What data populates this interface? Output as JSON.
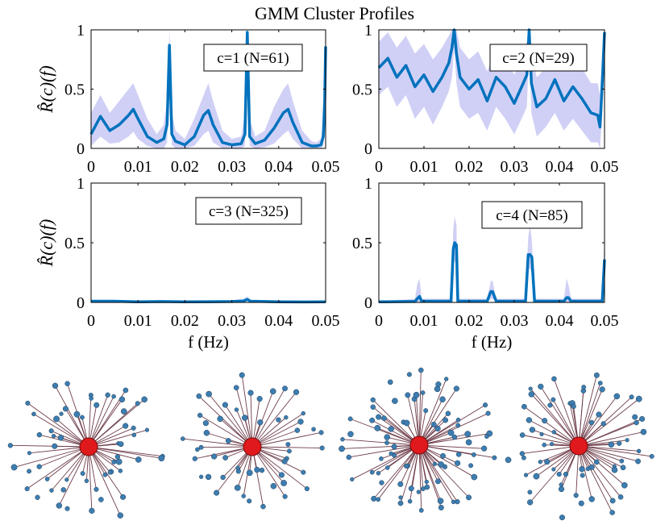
{
  "title": "GMM Cluster Profiles",
  "colors": {
    "line": "#0072BD",
    "band": "#C8C8F5",
    "hub": "#E0191C",
    "node": "#3D7DB0",
    "edge": "#6E3D4A"
  },
  "chart_data": [
    {
      "type": "line",
      "legend": "c=1 (N=61)",
      "ylabel": "R̂(c)(f)",
      "xlabel": "",
      "xlim": [
        0,
        0.05
      ],
      "ylim": [
        0,
        1
      ],
      "xticks": [
        "0",
        "0.01",
        "0.02",
        "0.03",
        "0.04",
        "0.05"
      ],
      "yticks": [
        "0",
        "0.5",
        "1"
      ],
      "x": [
        0,
        0.002,
        0.004,
        0.006,
        0.008,
        0.009,
        0.01,
        0.012,
        0.014,
        0.0155,
        0.0162,
        0.0167,
        0.0172,
        0.018,
        0.02,
        0.022,
        0.024,
        0.025,
        0.026,
        0.028,
        0.03,
        0.032,
        0.0328,
        0.0333,
        0.0338,
        0.035,
        0.037,
        0.039,
        0.041,
        0.042,
        0.043,
        0.045,
        0.047,
        0.048,
        0.049,
        0.0495,
        0.0498,
        0.05
      ],
      "mean": [
        0.12,
        0.27,
        0.15,
        0.2,
        0.28,
        0.33,
        0.25,
        0.1,
        0.05,
        0.08,
        0.2,
        0.87,
        0.12,
        0.06,
        0.03,
        0.1,
        0.28,
        0.32,
        0.2,
        0.05,
        0.03,
        0.04,
        0.12,
        0.98,
        0.1,
        0.04,
        0.07,
        0.17,
        0.3,
        0.33,
        0.22,
        0.05,
        0.02,
        0.02,
        0.03,
        0.1,
        0.4,
        0.86
      ],
      "upper": [
        0.3,
        0.45,
        0.3,
        0.4,
        0.5,
        0.55,
        0.45,
        0.25,
        0.12,
        0.2,
        0.4,
        1.0,
        0.3,
        0.15,
        0.08,
        0.25,
        0.45,
        0.55,
        0.4,
        0.15,
        0.08,
        0.1,
        0.3,
        1.0,
        0.25,
        0.1,
        0.15,
        0.35,
        0.5,
        0.55,
        0.4,
        0.15,
        0.06,
        0.05,
        0.08,
        0.25,
        0.7,
        1.0
      ],
      "lower": [
        0.02,
        0.1,
        0.04,
        0.05,
        0.1,
        0.14,
        0.08,
        0.02,
        0.0,
        0.0,
        0.05,
        0.7,
        0.03,
        0.0,
        0.0,
        0.02,
        0.12,
        0.15,
        0.05,
        0.0,
        0.0,
        0.0,
        0.02,
        0.9,
        0.02,
        0.0,
        0.01,
        0.04,
        0.12,
        0.15,
        0.08,
        0.0,
        0.0,
        0.0,
        0.0,
        0.02,
        0.15,
        0.7
      ]
    },
    {
      "type": "line",
      "legend": "c=2 (N=29)",
      "ylabel": "",
      "xlabel": "",
      "xlim": [
        0,
        0.05
      ],
      "ylim": [
        0,
        1
      ],
      "xticks": [
        "0",
        "0.01",
        "0.02",
        "0.03",
        "0.04",
        "0.05"
      ],
      "yticks": [
        "0",
        "0.5",
        "1"
      ],
      "x": [
        0,
        0.002,
        0.004,
        0.006,
        0.008,
        0.01,
        0.012,
        0.014,
        0.0155,
        0.0162,
        0.0167,
        0.0172,
        0.018,
        0.02,
        0.022,
        0.024,
        0.026,
        0.028,
        0.03,
        0.032,
        0.0328,
        0.0333,
        0.0338,
        0.035,
        0.037,
        0.039,
        0.041,
        0.043,
        0.045,
        0.047,
        0.0485,
        0.049,
        0.0495,
        0.05
      ],
      "mean": [
        0.68,
        0.76,
        0.6,
        0.7,
        0.52,
        0.62,
        0.48,
        0.6,
        0.72,
        0.85,
        1.0,
        0.8,
        0.6,
        0.5,
        0.58,
        0.4,
        0.6,
        0.52,
        0.38,
        0.55,
        0.62,
        1.0,
        0.55,
        0.35,
        0.42,
        0.58,
        0.4,
        0.52,
        0.42,
        0.3,
        0.28,
        0.18,
        0.55,
        0.98
      ],
      "upper": [
        0.9,
        0.98,
        0.85,
        0.95,
        0.8,
        0.88,
        0.75,
        0.85,
        0.95,
        1.0,
        1.0,
        1.0,
        0.85,
        0.75,
        0.82,
        0.65,
        0.85,
        0.78,
        0.62,
        0.8,
        0.9,
        1.0,
        0.8,
        0.6,
        0.68,
        0.85,
        0.65,
        0.78,
        0.68,
        0.55,
        0.55,
        0.45,
        0.8,
        1.0
      ],
      "lower": [
        0.45,
        0.52,
        0.35,
        0.45,
        0.25,
        0.35,
        0.2,
        0.35,
        0.48,
        0.6,
        0.85,
        0.55,
        0.35,
        0.25,
        0.3,
        0.15,
        0.35,
        0.25,
        0.12,
        0.28,
        0.35,
        0.85,
        0.3,
        0.1,
        0.18,
        0.3,
        0.15,
        0.25,
        0.15,
        0.05,
        0.05,
        0.0,
        0.3,
        0.85
      ]
    },
    {
      "type": "line",
      "legend": "c=3 (N=325)",
      "ylabel": "R̂(c)(f)",
      "xlabel": "f (Hz)",
      "xlim": [
        0,
        0.05
      ],
      "ylim": [
        0,
        1
      ],
      "xticks": [
        "0",
        "0.01",
        "0.02",
        "0.03",
        "0.04",
        "0.05"
      ],
      "yticks": [
        "0",
        "0.5",
        "1"
      ],
      "x": [
        0,
        0.005,
        0.01,
        0.015,
        0.02,
        0.025,
        0.03,
        0.0325,
        0.0333,
        0.034,
        0.04,
        0.045,
        0.05
      ],
      "mean": [
        0.01,
        0.01,
        0.005,
        0.008,
        0.005,
        0.006,
        0.008,
        0.012,
        0.025,
        0.01,
        0.005,
        0.004,
        0.005
      ],
      "upper": [
        0.02,
        0.02,
        0.015,
        0.018,
        0.015,
        0.016,
        0.018,
        0.03,
        0.05,
        0.02,
        0.015,
        0.012,
        0.015
      ],
      "lower": [
        0.0,
        0.0,
        0.0,
        0.0,
        0.0,
        0.0,
        0.0,
        0.0,
        0.01,
        0.0,
        0.0,
        0.0,
        0.0
      ]
    },
    {
      "type": "line",
      "legend": "c=4 (N=85)",
      "ylabel": "",
      "xlabel": "f (Hz)",
      "xlim": [
        0,
        0.05
      ],
      "ylim": [
        0,
        1
      ],
      "xticks": [
        "0",
        "0.01",
        "0.02",
        "0.03",
        "0.04",
        "0.05"
      ],
      "yticks": [
        "0",
        "0.5",
        "1"
      ],
      "x": [
        0,
        0.008,
        0.0085,
        0.009,
        0.0095,
        0.016,
        0.0165,
        0.0168,
        0.0172,
        0.0175,
        0.024,
        0.0248,
        0.0252,
        0.026,
        0.0325,
        0.0331,
        0.0335,
        0.0339,
        0.0345,
        0.041,
        0.0416,
        0.042,
        0.0426,
        0.049,
        0.0495,
        0.05
      ],
      "mean": [
        0.005,
        0.008,
        0.03,
        0.05,
        0.01,
        0.01,
        0.45,
        0.5,
        0.48,
        0.01,
        0.01,
        0.09,
        0.09,
        0.01,
        0.01,
        0.4,
        0.4,
        0.38,
        0.01,
        0.01,
        0.04,
        0.04,
        0.01,
        0.01,
        0.01,
        0.36
      ],
      "upper": [
        0.01,
        0.03,
        0.15,
        0.2,
        0.03,
        0.03,
        0.62,
        0.72,
        0.65,
        0.03,
        0.03,
        0.18,
        0.18,
        0.03,
        0.03,
        0.55,
        0.65,
        0.52,
        0.03,
        0.03,
        0.2,
        0.15,
        0.03,
        0.03,
        0.03,
        0.55
      ],
      "lower": [
        0.0,
        0.0,
        0.0,
        0.0,
        0.0,
        0.0,
        0.3,
        0.35,
        0.32,
        0.0,
        0.0,
        0.03,
        0.03,
        0.0,
        0.0,
        0.28,
        0.28,
        0.25,
        0.0,
        0.0,
        0.0,
        0.0,
        0.0,
        0.0,
        0.0,
        0.2
      ]
    }
  ],
  "networks": [
    {
      "name": "network-c1",
      "leaves": 60
    },
    {
      "name": "network-c2",
      "leaves": 55
    },
    {
      "name": "network-c3",
      "leaves": 85
    },
    {
      "name": "network-c4",
      "leaves": 70
    }
  ]
}
